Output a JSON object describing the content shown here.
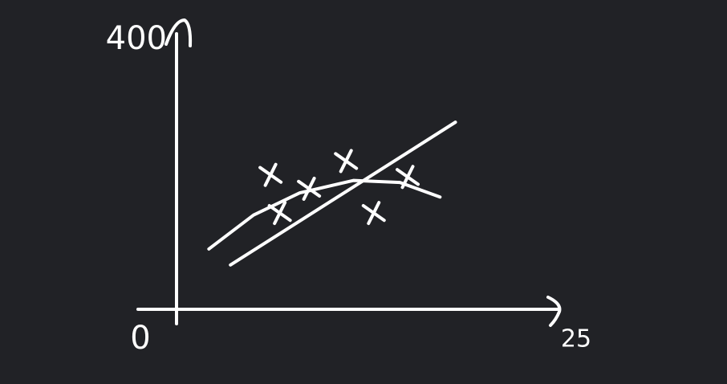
{
  "chart_data": {
    "type": "scatter",
    "background": "#212226",
    "xlim": [
      0,
      25
    ],
    "ylim": [
      0,
      400
    ],
    "xticks": [
      0,
      25
    ],
    "yticks": [
      400
    ],
    "series": [
      {
        "type": "scatter",
        "color": "#ffffff",
        "x": [
          6.1,
          8.6,
          11.0,
          6.7,
          12.8,
          15.0
        ],
        "values": [
          194,
          174,
          214,
          139,
          139,
          191
        ]
      },
      {
        "type": "line",
        "color": "#ffffff",
        "x": [
          3.5,
          18.1
        ],
        "values": [
          64,
          270
        ]
      },
      {
        "type": "line",
        "color": "#ffffff",
        "x": [
          2.1,
          5,
          8,
          11.5,
          14.5,
          17.1
        ],
        "values": [
          87,
          136,
          168,
          186,
          183,
          162
        ]
      }
    ]
  }
}
